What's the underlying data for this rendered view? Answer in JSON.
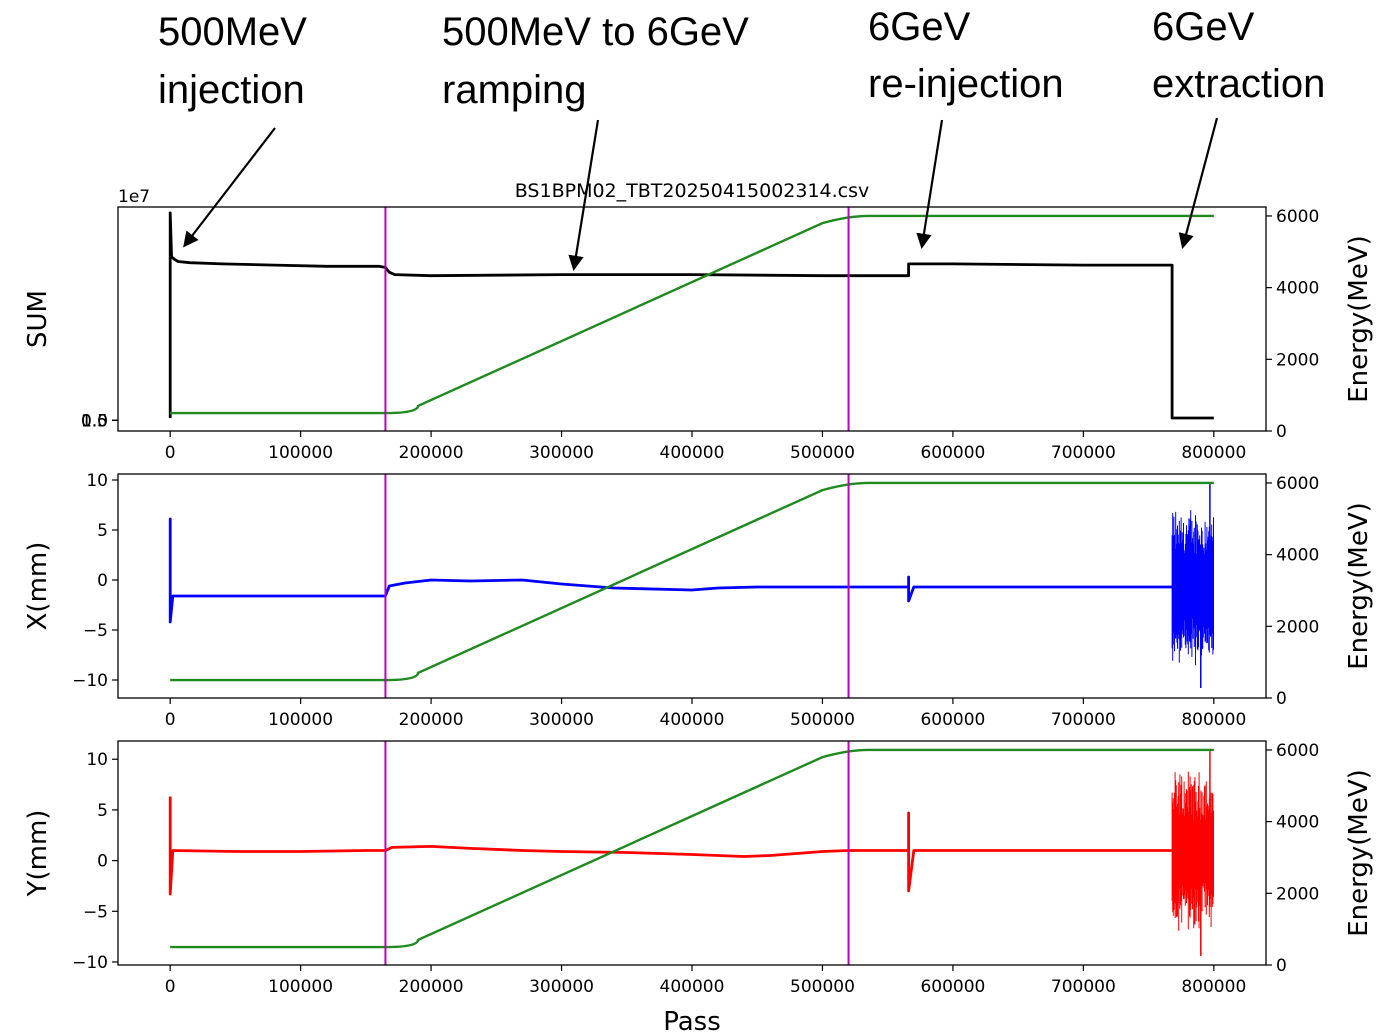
{
  "annotations": [
    {
      "lines": [
        "500MeV",
        "injection"
      ],
      "target_x": 5000,
      "target_sum": 15000000.0
    },
    {
      "lines": [
        "500MeV to 6GeV",
        "ramping"
      ],
      "target_x": 310000,
      "target_sum": 13000000.0
    },
    {
      "lines": [
        "6GeV",
        "re-injection"
      ],
      "target_x": 570000,
      "target_sum": 15000000.0
    },
    {
      "lines": [
        "6GeV",
        "extraction"
      ],
      "target_x": 770000,
      "target_sum": 15000000.0
    }
  ],
  "chart_data": [
    {
      "type": "line",
      "title": "BS1BPM02_TBT20250415002314.csv",
      "xlabel": "",
      "ylabel": "SUM",
      "y2label": "Energy(MeV)",
      "offset_text": "1e7",
      "xlim": [
        -40000,
        840000
      ],
      "ylim": [
        -900000.0,
        18000000.0
      ],
      "y2lim": [
        0,
        6250
      ],
      "xticks": [
        0,
        100000,
        200000,
        300000,
        400000,
        500000,
        600000,
        700000,
        800000
      ],
      "yticks": [
        0.0,
        0.5,
        1.0,
        1.5
      ],
      "ytick_labels": [
        "0.0",
        "0.5",
        "1.0",
        "1.5"
      ],
      "y2ticks": [
        0,
        2000,
        4000,
        6000
      ],
      "vlines": [
        165000,
        520000
      ],
      "series": [
        {
          "axis": "left",
          "color": "#000000",
          "x": [
            0,
            0,
            1000,
            1000,
            3000,
            6000,
            15000,
            40000,
            80000,
            120000,
            160000,
            165000,
            168000,
            172000,
            200000,
            300000,
            400000,
            500000,
            566000,
            566000,
            570000,
            600000,
            700000,
            768000,
            768000,
            770000,
            790000,
            800000
          ],
          "y": [
            200000.0,
            17500000.0,
            14000000.0,
            13800000.0,
            13600000.0,
            13400000.0,
            13300000.0,
            13200000.0,
            13100000.0,
            13000000.0,
            13000000.0,
            12900000.0,
            12500000.0,
            12300000.0,
            12200000.0,
            12300000.0,
            12300000.0,
            12200000.0,
            12200000.0,
            13200000.0,
            13200000.0,
            13200000.0,
            13100000.0,
            13100000.0,
            200000.0,
            200000.0,
            200000.0,
            200000.0
          ]
        },
        {
          "axis": "right",
          "color": "#1f8a1f",
          "energy": true
        }
      ]
    },
    {
      "type": "line",
      "xlabel": "",
      "ylabel": "X(mm)",
      "y2label": "Energy(MeV)",
      "xlim": [
        -40000,
        840000
      ],
      "ylim": [
        -11.8,
        10.6
      ],
      "y2lim": [
        0,
        6250
      ],
      "xticks": [
        0,
        100000,
        200000,
        300000,
        400000,
        500000,
        600000,
        700000,
        800000
      ],
      "yticks": [
        -10,
        -5,
        0,
        5,
        10
      ],
      "ytick_labels": [
        "−10",
        "−5",
        "0",
        "5",
        "10"
      ],
      "y2ticks": [
        0,
        2000,
        4000,
        6000
      ],
      "vlines": [
        165000,
        520000
      ],
      "series": [
        {
          "axis": "left",
          "color": "#0000ff",
          "x": [
            0,
            0,
            0,
            2000,
            20000,
            80000,
            120000,
            165000,
            168000,
            180000,
            200000,
            230000,
            270000,
            300000,
            340000,
            400000,
            420000,
            450000,
            500000,
            520000,
            566000,
            566000,
            566000,
            570000,
            700000,
            768000
          ],
          "y": [
            -1.6,
            6.1,
            -4.2,
            -1.6,
            -1.6,
            -1.6,
            -1.6,
            -1.6,
            -0.6,
            -0.3,
            0.0,
            -0.1,
            0.0,
            -0.4,
            -0.8,
            -1.0,
            -0.8,
            -0.7,
            -0.7,
            -0.7,
            -0.7,
            0.3,
            -2.1,
            -0.7,
            -0.7,
            -0.7
          ]
        },
        {
          "axis": "left",
          "color": "#0000ff",
          "noise": {
            "from": 768000,
            "to": 800000,
            "center": -0.7,
            "amp": 8.5,
            "min": -10.8,
            "max": 9.8
          }
        },
        {
          "axis": "right",
          "color": "#1f8a1f",
          "energy": true
        }
      ]
    },
    {
      "type": "line",
      "xlabel": "Pass",
      "ylabel": "Y(mm)",
      "y2label": "Energy(MeV)",
      "xlim": [
        -40000,
        840000
      ],
      "ylim": [
        -10.3,
        11.8
      ],
      "y2lim": [
        0,
        6250
      ],
      "xticks": [
        0,
        100000,
        200000,
        300000,
        400000,
        500000,
        600000,
        700000,
        800000
      ],
      "xtick_labels": [
        "0",
        "100000",
        "200000",
        "300000",
        "400000",
        "500000",
        "600000",
        "700000",
        "800000"
      ],
      "yticks": [
        -10,
        -5,
        0,
        5,
        10
      ],
      "ytick_labels": [
        "−10",
        "−5",
        "0",
        "5",
        "10"
      ],
      "y2ticks": [
        0,
        2000,
        4000,
        6000
      ],
      "y2tick_labels": [
        "0",
        "2000",
        "4000",
        "6000"
      ],
      "vlines": [
        165000,
        520000
      ],
      "series": [
        {
          "axis": "left",
          "color": "#ff0000",
          "x": [
            0,
            0,
            0,
            2000,
            50000,
            100000,
            150000,
            165000,
            170000,
            200000,
            230000,
            270000,
            300000,
            350000,
            400000,
            440000,
            460000,
            500000,
            520000,
            566000,
            566000,
            566000,
            570000,
            700000,
            768000
          ],
          "y": [
            1.0,
            6.2,
            -3.3,
            1.0,
            0.9,
            0.9,
            1.0,
            1.0,
            1.3,
            1.4,
            1.2,
            1.0,
            0.9,
            0.8,
            0.6,
            0.4,
            0.5,
            0.9,
            1.0,
            1.0,
            4.7,
            -3.0,
            1.0,
            1.0,
            1.0
          ]
        },
        {
          "axis": "left",
          "color": "#ff0000",
          "noise": {
            "from": 768000,
            "to": 800000,
            "center": 1.0,
            "amp": 8.5,
            "min": -9.4,
            "max": 10.8
          }
        },
        {
          "axis": "right",
          "color": "#1f8a1f",
          "energy": true
        }
      ]
    }
  ],
  "energy_profile": {
    "x": [
      0,
      165000,
      190000,
      500000,
      520000,
      800000
    ],
    "y": [
      500,
      500,
      700,
      5800,
      6000,
      6000
    ]
  },
  "colors": {
    "vline": "#bf00bf",
    "energy": "#1f8a1f",
    "frame": "#000000"
  }
}
